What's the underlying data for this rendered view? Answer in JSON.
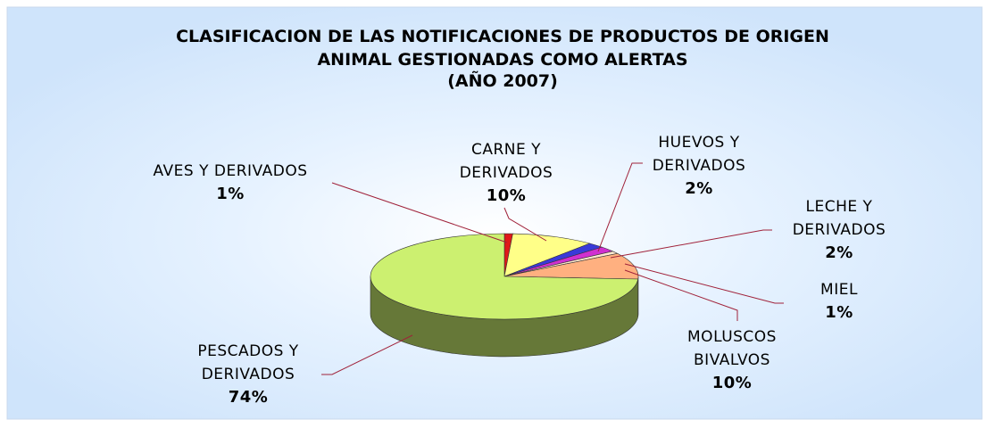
{
  "chart_data": {
    "type": "pie",
    "title": "CLASIFICACION DE LAS NOTIFICACIONES DE PRODUCTOS DE ORIGEN ANIMAL GESTIONADAS COMO ALERTAS",
    "subtitle": "(AÑO 2007)",
    "categories": [
      "AVES Y DERIVADOS",
      "CARNE Y DERIVADOS",
      "HUEVOS Y DERIVADOS",
      "LECHE Y DERIVADOS",
      "MIEL",
      "MOLUSCOS BIVALVOS",
      "PESCADOS Y DERIVADOS"
    ],
    "values": [
      1,
      10,
      2,
      2,
      1,
      10,
      74
    ],
    "value_labels": [
      "1%",
      "10%",
      "2%",
      "2%",
      "1%",
      "10%",
      "74%"
    ],
    "colors": [
      "#e01818",
      "#ffff88",
      "#3a3ad8",
      "#d030d0",
      "#ffe8d0",
      "#ffb080",
      "#ccf070"
    ]
  }
}
